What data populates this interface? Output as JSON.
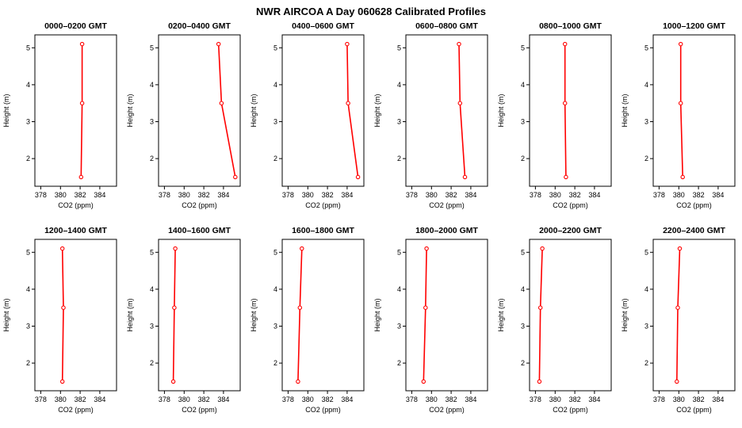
{
  "title": "NWR AIRCOA A  Day 060628  Calibrated Profiles",
  "chart_data": {
    "type": "line",
    "layout": {
      "rows": 2,
      "cols": 6
    },
    "xlabel": "CO2 (ppm)",
    "ylabel": "Height (m)",
    "xlim": [
      377.4,
      385.7
    ],
    "ylim": [
      1.25,
      5.35
    ],
    "xticks": [
      378,
      380,
      382,
      384
    ],
    "yticks": [
      2,
      3,
      4,
      5
    ],
    "line_color": "#ff0000",
    "marker": "circle-open",
    "heights": [
      1.5,
      3.5,
      5.1
    ],
    "panels": [
      {
        "title": "0000–0200 GMT",
        "co2": [
          382.1,
          382.2,
          382.2
        ]
      },
      {
        "title": "0200–0400 GMT",
        "co2": [
          385.2,
          383.8,
          383.5
        ]
      },
      {
        "title": "0400–0600 GMT",
        "co2": [
          385.1,
          384.1,
          384.0
        ]
      },
      {
        "title": "0600–0800 GMT",
        "co2": [
          383.4,
          382.9,
          382.8
        ]
      },
      {
        "title": "0800–1000 GMT",
        "co2": [
          381.1,
          381.0,
          381.0
        ]
      },
      {
        "title": "1000–1200 GMT",
        "co2": [
          380.4,
          380.2,
          380.2
        ]
      },
      {
        "title": "1200–1400 GMT",
        "co2": [
          380.2,
          380.3,
          380.2
        ]
      },
      {
        "title": "1400–1600 GMT",
        "co2": [
          378.9,
          379.0,
          379.1
        ]
      },
      {
        "title": "1600–1800 GMT",
        "co2": [
          379.0,
          379.2,
          379.4
        ]
      },
      {
        "title": "1800–2000 GMT",
        "co2": [
          379.2,
          379.4,
          379.5
        ]
      },
      {
        "title": "2000–2200 GMT",
        "co2": [
          378.4,
          378.5,
          378.7
        ]
      },
      {
        "title": "2200–2400 GMT",
        "co2": [
          379.8,
          379.9,
          380.1
        ]
      }
    ]
  }
}
